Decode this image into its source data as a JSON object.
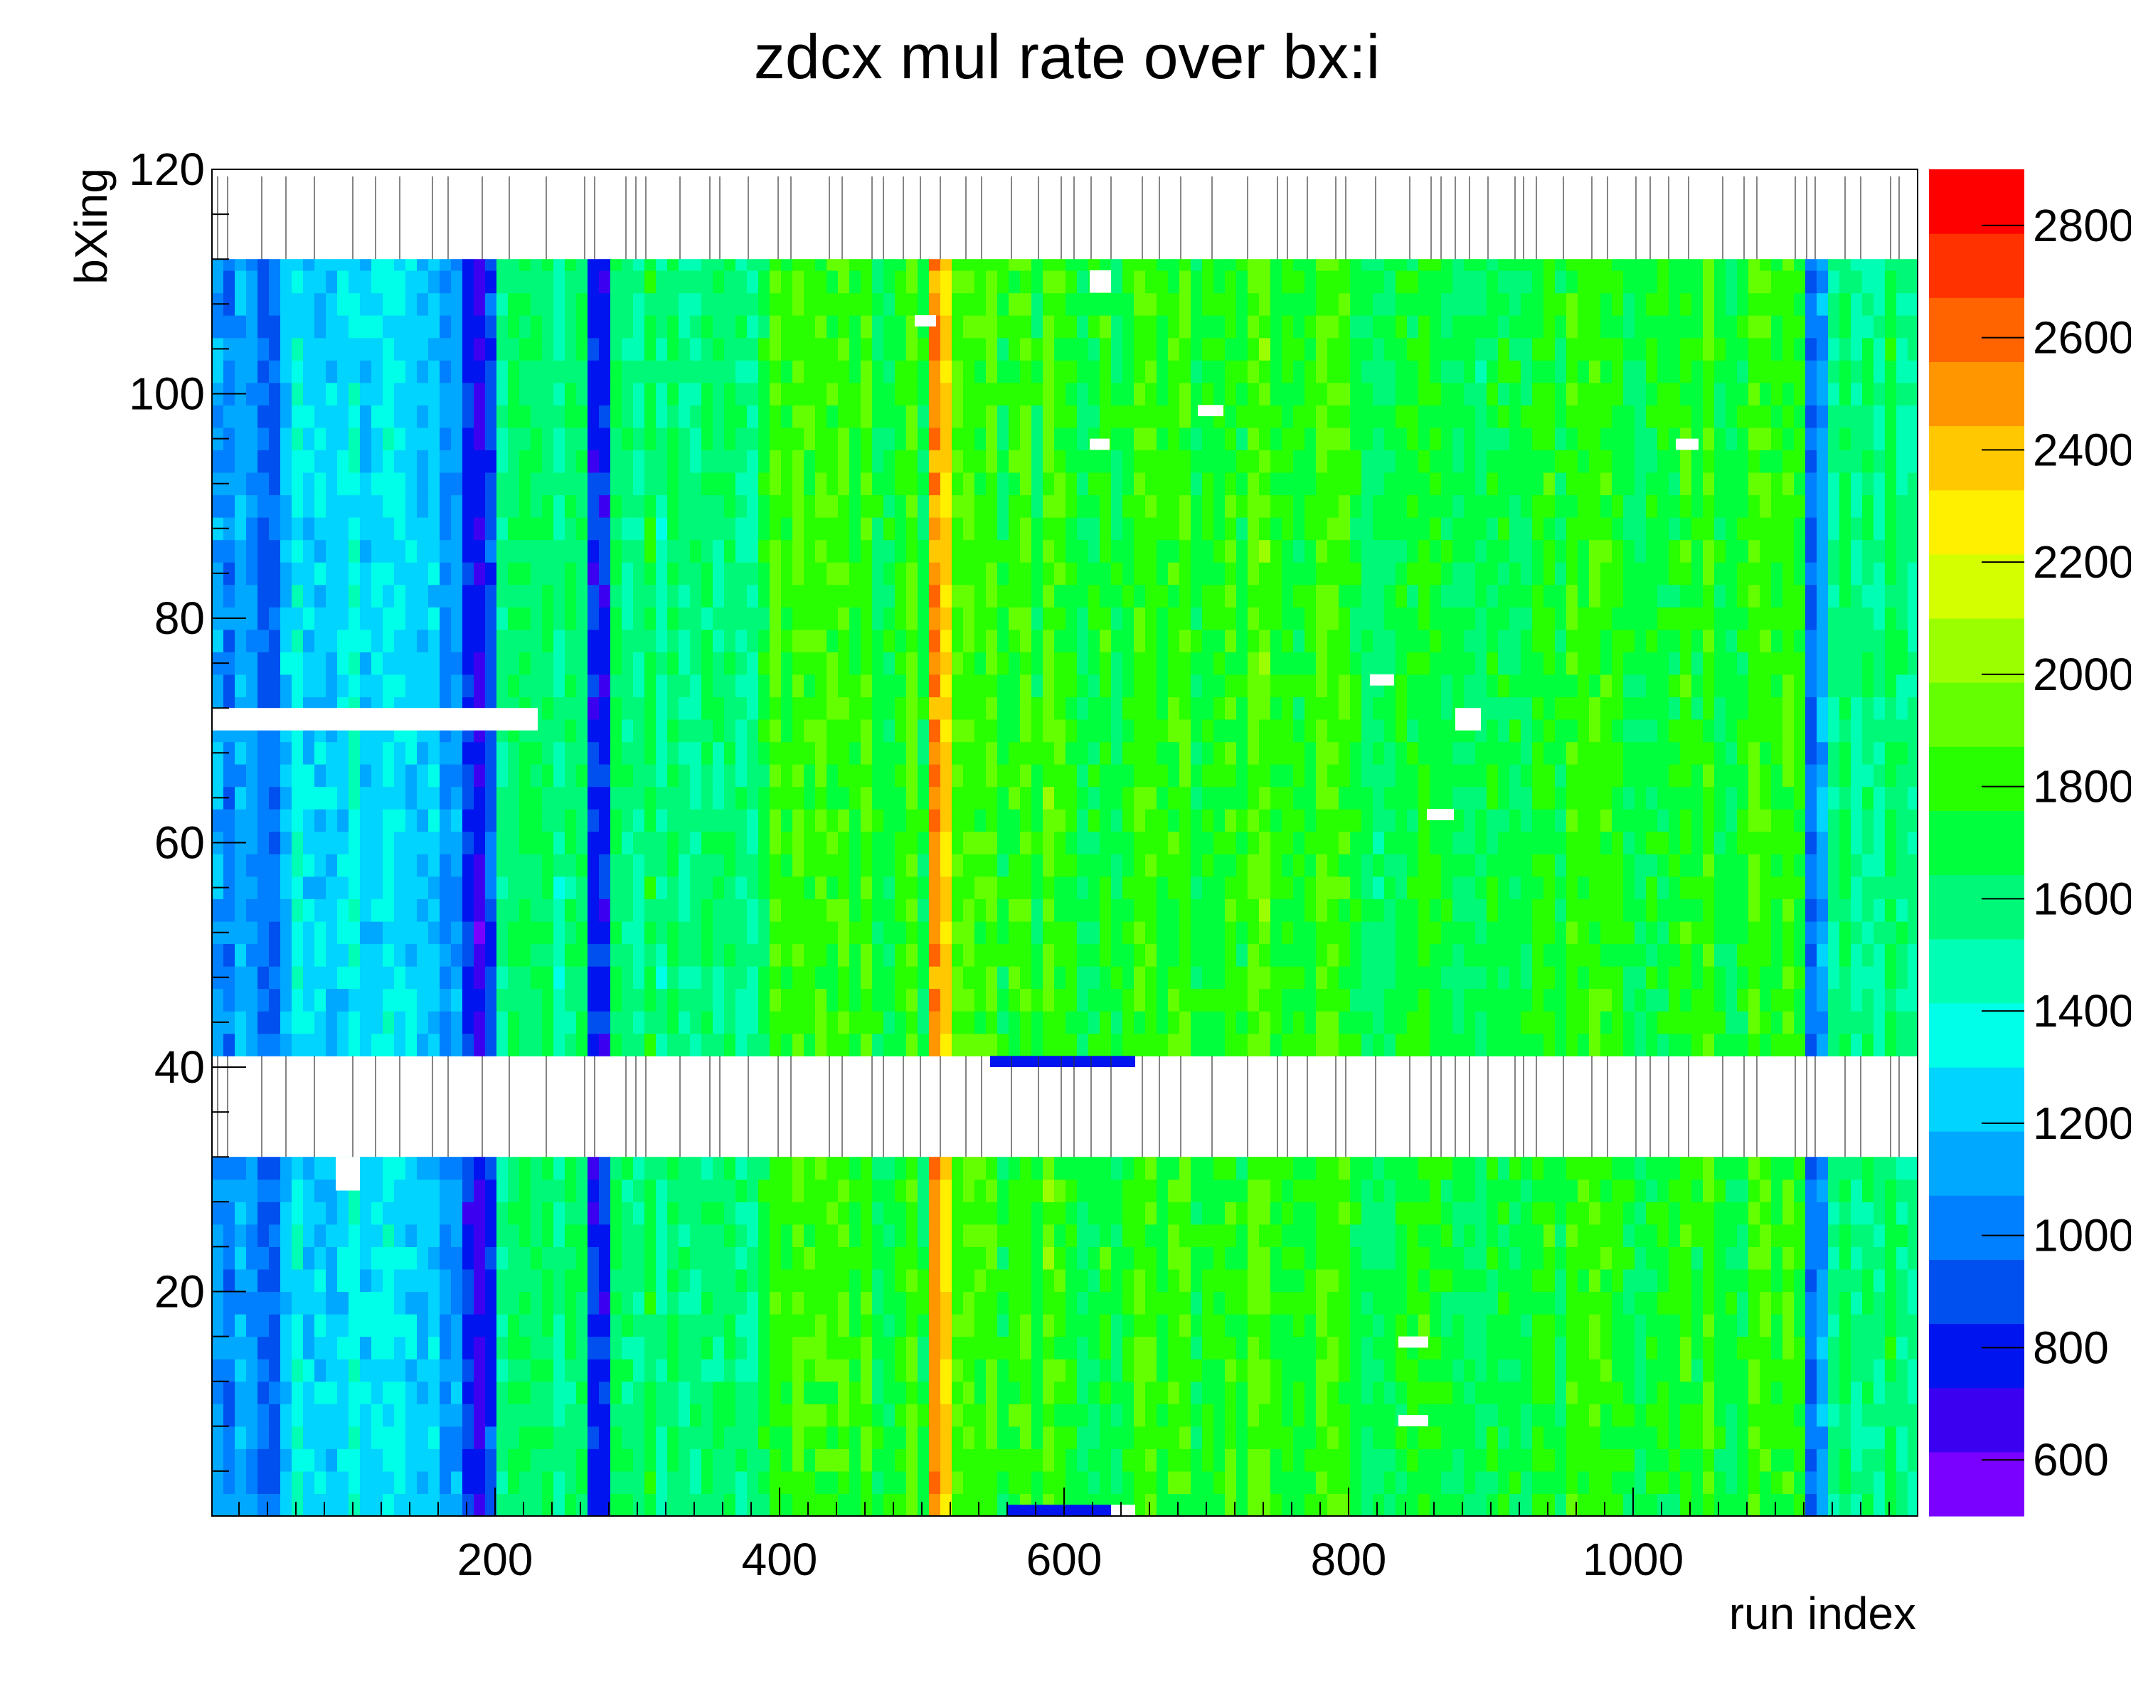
{
  "chart_data": {
    "type": "heatmap",
    "title": "zdcx mul rate over bx:i",
    "xlabel": "run index",
    "ylabel": "bXing",
    "xlim": [
      1,
      1200
    ],
    "ylim": [
      0,
      120
    ],
    "x_ticks": [
      200,
      400,
      600,
      800,
      1000
    ],
    "y_ticks": [
      20,
      40,
      60,
      80,
      100,
      120
    ],
    "filled_bxing_ranges": [
      [
        0,
        32
      ],
      [
        41,
        112
      ]
    ],
    "empty_bxing_ranges": [
      [
        32,
        41
      ],
      [
        112,
        120
      ]
    ],
    "color_scale": {
      "min": 500,
      "max": 2900,
      "step": 120,
      "tick_labels": [
        "600",
        "800",
        "1000",
        "1200",
        "1400",
        "1600",
        "1800",
        "2000",
        "2200",
        "2400",
        "2600",
        "2800"
      ],
      "tick_values": [
        600,
        800,
        1000,
        1200,
        1400,
        1600,
        1800,
        2000,
        2200,
        2400,
        2600,
        2800
      ],
      "palette": [
        "#7a00ff",
        "#3c00f0",
        "#0014f0",
        "#0050f0",
        "#0080ff",
        "#00a8ff",
        "#00d4ff",
        "#00ffe8",
        "#00ffb4",
        "#00f878",
        "#00ff3c",
        "#28ff00",
        "#64ff00",
        "#9cff00",
        "#d4ff00",
        "#fff000",
        "#ffc800",
        "#ff9600",
        "#ff6400",
        "#ff3200",
        "#ff0000"
      ]
    },
    "column_profile": [
      {
        "x": [
          1,
          10
        ],
        "value": 1050
      },
      {
        "x": [
          10,
          30
        ],
        "value": 1150
      },
      {
        "x": [
          30,
          45
        ],
        "value": 950
      },
      {
        "x": [
          45,
          90
        ],
        "value": 1300
      },
      {
        "x": [
          90,
          160
        ],
        "value": 1350
      },
      {
        "x": [
          160,
          175
        ],
        "value": 1100
      },
      {
        "x": [
          175,
          195
        ],
        "value": 800
      },
      {
        "x": [
          195,
          260
        ],
        "value": 1600
      },
      {
        "x": [
          260,
          275
        ],
        "value": 900
      },
      {
        "x": [
          275,
          380
        ],
        "value": 1650
      },
      {
        "x": [
          380,
          500
        ],
        "value": 1850
      },
      {
        "x": [
          500,
          515
        ],
        "value": 2500
      },
      {
        "x": [
          515,
          600
        ],
        "value": 1850
      },
      {
        "x": [
          600,
          700
        ],
        "value": 1800
      },
      {
        "x": [
          700,
          800
        ],
        "value": 1850
      },
      {
        "x": [
          800,
          900
        ],
        "value": 1750
      },
      {
        "x": [
          900,
          1000
        ],
        "value": 1800
      },
      {
        "x": [
          1000,
          1120
        ],
        "value": 1800
      },
      {
        "x": [
          1120,
          1135
        ],
        "value": 1100
      },
      {
        "x": [
          1135,
          1200
        ],
        "value": 1650
      }
    ],
    "empty_cells": [
      {
        "x": [
          1,
          230
        ],
        "y": [
          70,
          72
        ]
      },
      {
        "x": [
          88,
          105
        ],
        "y": [
          29,
          32
        ]
      },
      {
        "x": [
          618,
          633
        ],
        "y": [
          109,
          111
        ]
      },
      {
        "x": [
          495,
          510
        ],
        "y": [
          106,
          107
        ]
      },
      {
        "x": [
          618,
          632
        ],
        "y": [
          95,
          96
        ]
      },
      {
        "x": [
          694,
          712
        ],
        "y": [
          98,
          99
        ]
      },
      {
        "x": [
          1030,
          1046
        ],
        "y": [
          95,
          96
        ]
      },
      {
        "x": [
          815,
          832
        ],
        "y": [
          74,
          75
        ]
      },
      {
        "x": [
          875,
          893
        ],
        "y": [
          70,
          72
        ]
      },
      {
        "x": [
          855,
          874
        ],
        "y": [
          62,
          63
        ]
      },
      {
        "x": [
          835,
          856
        ],
        "y": [
          15,
          16
        ]
      },
      {
        "x": [
          835,
          856
        ],
        "y": [
          8,
          9
        ]
      },
      {
        "x": [
          633,
          650
        ],
        "y": [
          0,
          1
        ]
      }
    ],
    "low_cells": [
      {
        "x": [
          548,
          650
        ],
        "y": [
          40,
          41
        ],
        "value": 850
      },
      {
        "x": [
          560,
          633
        ],
        "y": [
          0,
          1
        ],
        "value": 850
      }
    ]
  }
}
